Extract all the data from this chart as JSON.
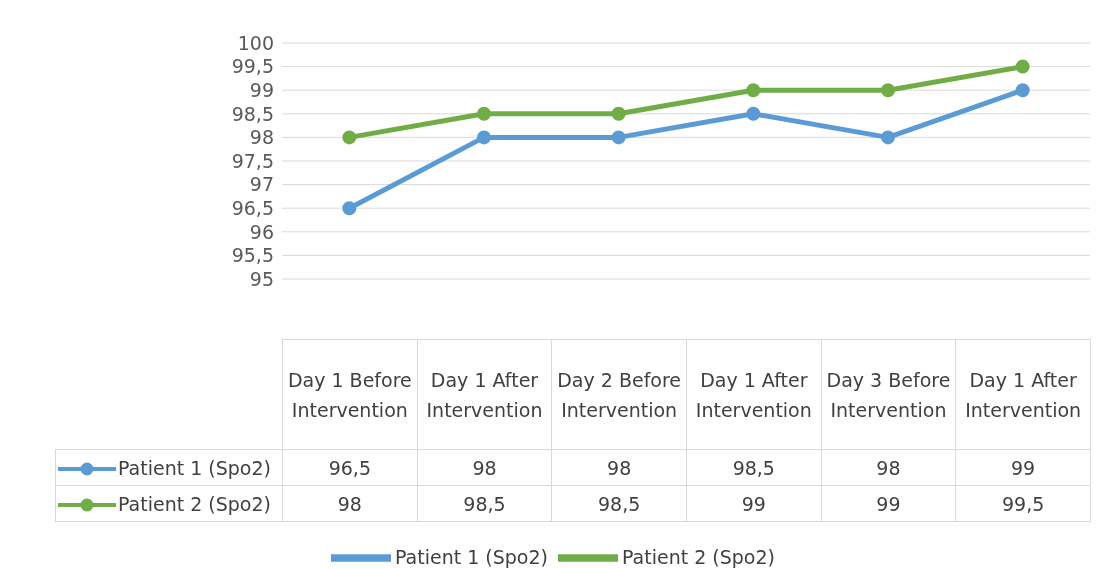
{
  "chart_data": {
    "type": "line",
    "categories": [
      "Day 1 Before Intervention",
      "Day 1 After Intervention",
      "Day 2 Before Intervention",
      "Day 1 After Intervention",
      "Day 3 Before Intervention",
      "Day 1 After Intervention"
    ],
    "series": [
      {
        "name": "Patient 1 (Spo2)",
        "color": "#5b9bd5",
        "values": [
          96.5,
          98,
          98,
          98.5,
          98,
          99
        ],
        "value_labels": [
          "96,5",
          "98",
          "98",
          "98,5",
          "98",
          "99"
        ]
      },
      {
        "name": "Patient 2 (Spo2)",
        "color": "#70ad47",
        "values": [
          98,
          98.5,
          98.5,
          99,
          99,
          99.5
        ],
        "value_labels": [
          "98",
          "98,5",
          "98,5",
          "99",
          "99",
          "99,5"
        ]
      }
    ],
    "ylim": [
      95,
      100
    ],
    "yticks": [
      95,
      {
        "value": 95.5,
        "label": "95,5"
      },
      96,
      {
        "value": 96.5,
        "label": "96,5"
      },
      97,
      {
        "value": 97.5,
        "label": "97,5"
      },
      98,
      {
        "value": 98.5,
        "label": "98,5"
      },
      99,
      {
        "value": 99.5,
        "label": "99,5"
      },
      100
    ],
    "grid": "y",
    "legend": "bottom",
    "marker": "circle",
    "line_style": "solid"
  }
}
